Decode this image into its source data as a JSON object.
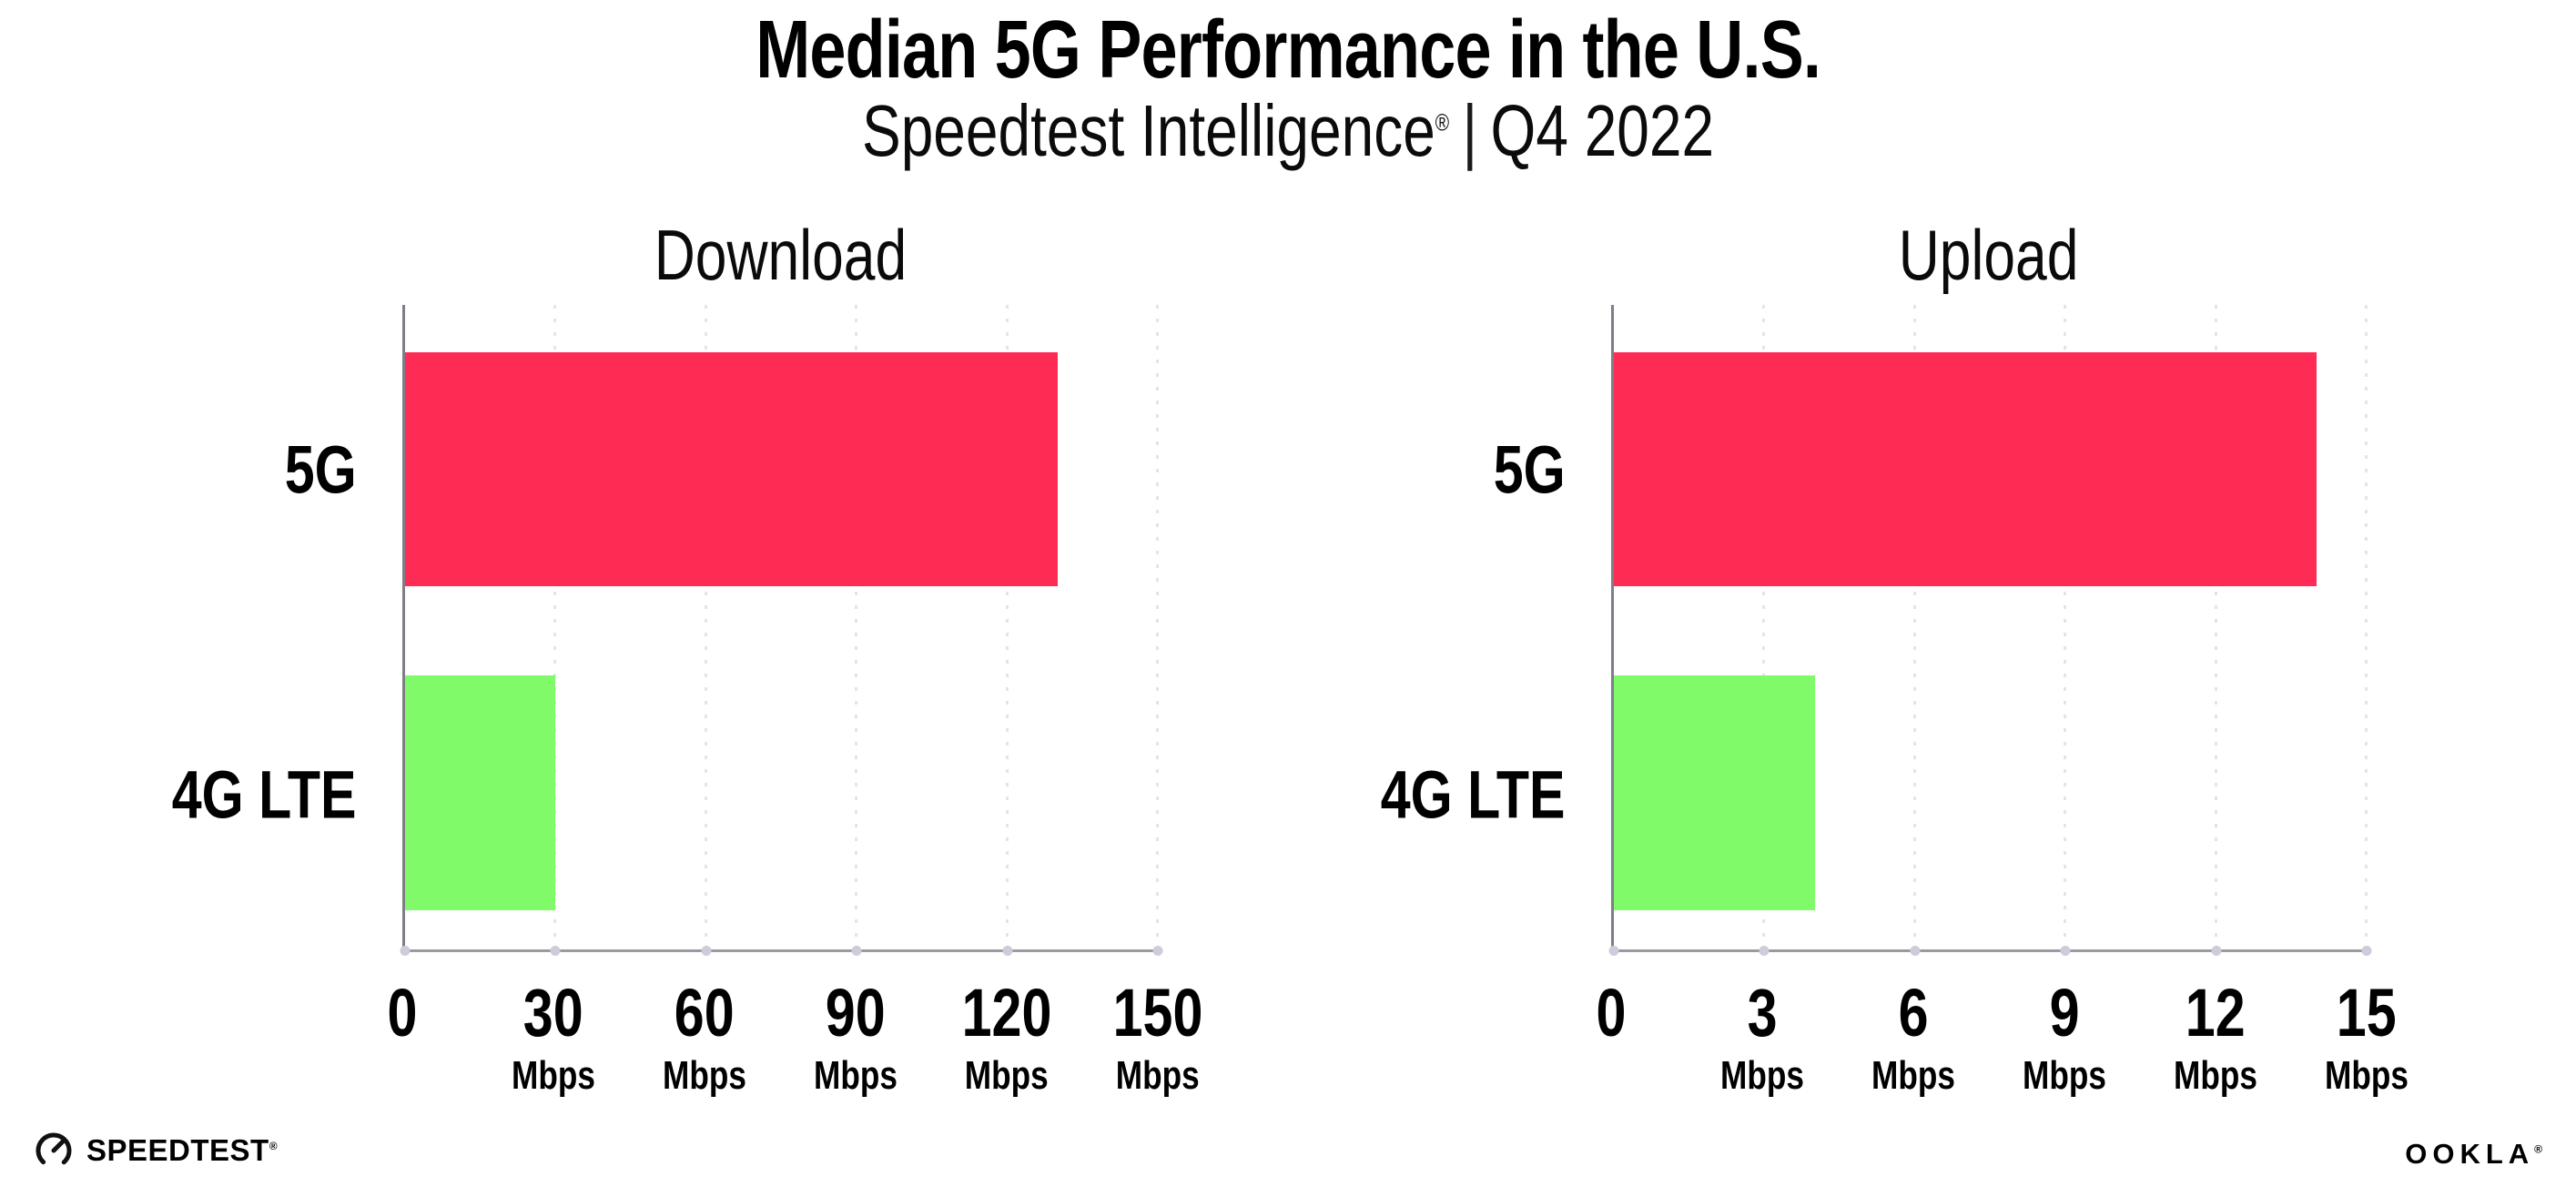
{
  "header": {
    "title": "Median 5G Performance in the U.S.",
    "subtitle_brand": "Speedtest Intelligence",
    "registered_mark": "®",
    "separator": "|",
    "period": "Q4 2022"
  },
  "footer": {
    "speedtest_label": "SPEEDTEST",
    "speedtest_mark": "®",
    "ookla_label": "OOKLA",
    "ookla_mark": "®"
  },
  "colors": {
    "bar_5g": "#fe2c55",
    "bar_4g_lte": "#80fa69",
    "gridline": "#e3e3ed",
    "axis": "#8f8f97",
    "axis_dot": "#ccccda",
    "text": "#000000"
  },
  "chart_data": [
    {
      "type": "bar",
      "orientation": "horizontal",
      "title": "Download",
      "unit": "Mbps",
      "xlim": [
        0,
        150
      ],
      "xticks": [
        0,
        30,
        60,
        90,
        120,
        150
      ],
      "categories": [
        "5G",
        "4G LTE"
      ],
      "values": [
        130,
        30
      ],
      "bar_colors": [
        "#fe2c55",
        "#80fa69"
      ],
      "grid": "dotted-vertical",
      "legend": "none"
    },
    {
      "type": "bar",
      "orientation": "horizontal",
      "title": "Upload",
      "unit": "Mbps",
      "xlim": [
        0,
        15
      ],
      "xticks": [
        0,
        3,
        6,
        9,
        12,
        15
      ],
      "categories": [
        "5G",
        "4G LTE"
      ],
      "values": [
        14,
        4
      ],
      "bar_colors": [
        "#fe2c55",
        "#80fa69"
      ],
      "grid": "dotted-vertical",
      "legend": "none"
    }
  ]
}
